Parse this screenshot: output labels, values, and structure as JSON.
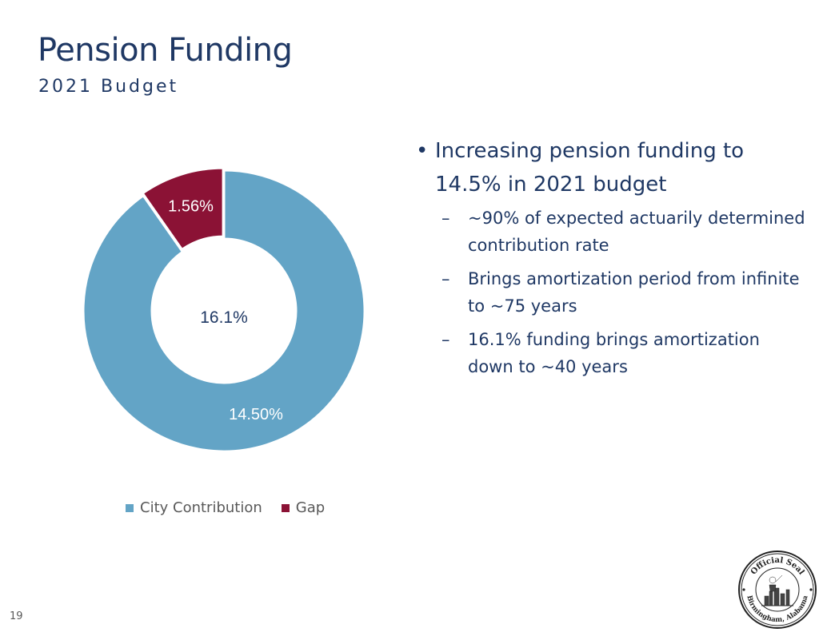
{
  "header": {
    "title": "Pension Funding",
    "subtitle": "2021 Budget"
  },
  "chart_data": {
    "type": "pie",
    "categories": [
      "City Contribution",
      "Gap"
    ],
    "values": [
      14.5,
      1.56
    ],
    "data_labels": [
      "14.50%",
      "1.56%"
    ],
    "center_label": "16.1%",
    "colors": [
      "#63A4C6",
      "#8B1235"
    ],
    "legend_placement": "bottom"
  },
  "bullets": {
    "main": "Increasing pension funding to 14.5% in 2021 budget",
    "subs": [
      "~90% of expected actuarily determined contribution rate",
      "Brings amortization period from infinite to ~75 years",
      "16.1% funding brings amortization down to ~40 years"
    ]
  },
  "seal": {
    "text_top": "Official Seal",
    "text_bottom": "Birmingham, Alabama"
  },
  "footer": {
    "page_number": "19"
  }
}
